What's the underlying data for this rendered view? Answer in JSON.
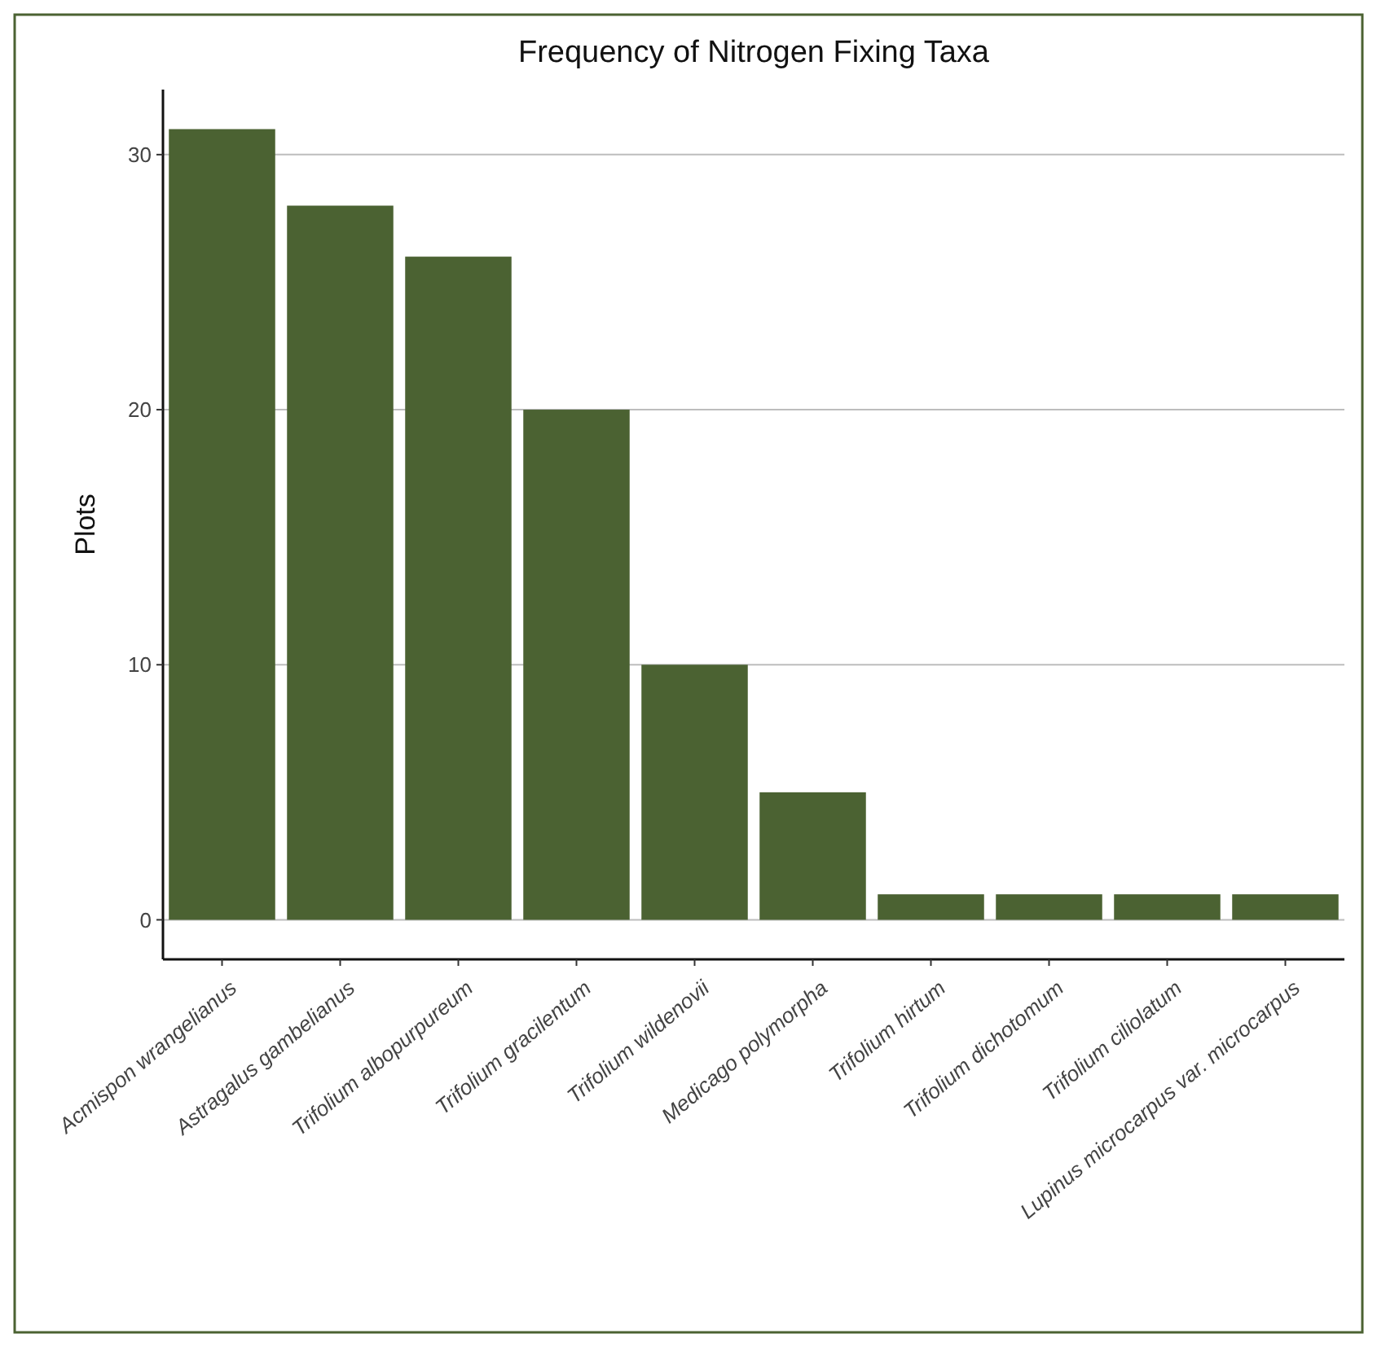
{
  "chart_data": {
    "type": "bar",
    "title": "Frequency of Nitrogen Fixing Taxa",
    "ylabel": "Plots",
    "categories": [
      "Acmispon wrangelianus",
      "Astragalus gambelianus",
      "Trifolium albopurpureum",
      "Trifolium gracilentum",
      "Trifolium wildenovii",
      "Medicago polymorpha",
      "Trifolium hirtum",
      "Trifolium dichotomum",
      "Trifolium ciliolatum",
      "Lupinus microcarpus var. microcarpus"
    ],
    "values": [
      31,
      28,
      26,
      20,
      10,
      5,
      1,
      1,
      1,
      1
    ],
    "color": "#4b6232",
    "ylim": [
      -1.55,
      32.55
    ],
    "yticks": [
      0,
      10,
      20,
      30
    ],
    "grid": "y"
  }
}
